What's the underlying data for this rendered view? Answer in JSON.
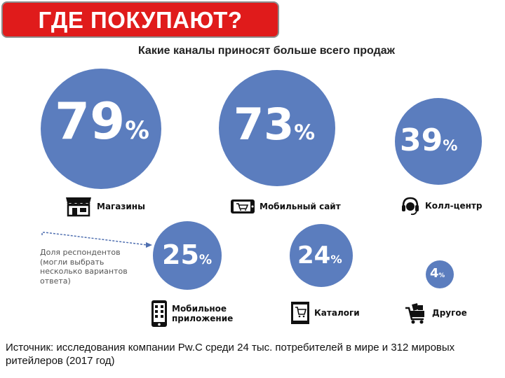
{
  "header": {
    "title": "ГДЕ ПОКУПАЮТ?"
  },
  "subtitle": "Какие каналы приносят больше всего продаж",
  "percent_sign": "%",
  "channels": [
    {
      "value": "79",
      "label": "Магазины"
    },
    {
      "value": "73",
      "label": "Мобильный сайт"
    },
    {
      "value": "39",
      "label": "Колл-центр"
    },
    {
      "value": "25",
      "label": "Мобильное приложение"
    },
    {
      "value": "24",
      "label": "Каталоги"
    },
    {
      "value": "4",
      "label": "Другое"
    }
  ],
  "note": "Доля респондентов (могли выбрать несколько вариантов ответа)",
  "source": "Источник: исследования компании Pw.C среди 24 тыс. потребителей в мире и 312 мировых ритейлеров (2017 год)",
  "colors": {
    "circle": "#5b7dbe",
    "title_bg": "#e01b1b"
  }
}
